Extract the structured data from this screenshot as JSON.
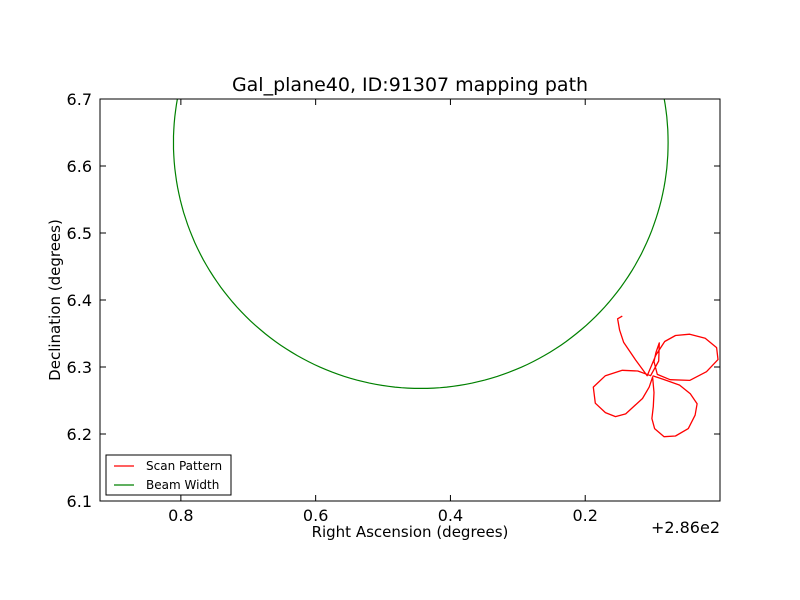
{
  "chart_data": {
    "type": "line",
    "title": "Gal_plane40, ID:91307 mapping path",
    "xlabel": "Right Ascension (degrees)",
    "ylabel": "Declination (degrees)",
    "x_offset_label": "+2.86e2",
    "x_offset_value": 286,
    "xlim": [
      286.92,
      286.0
    ],
    "ylim": [
      6.1,
      6.7
    ],
    "x_inverted": true,
    "xticks": [
      286.8,
      286.6,
      286.4,
      286.2
    ],
    "xtick_labels": [
      "0.8",
      "0.6",
      "0.4",
      "0.2"
    ],
    "yticks": [
      6.1,
      6.2,
      6.3,
      6.4,
      6.5,
      6.6,
      6.7
    ],
    "ytick_labels": [
      "6.1",
      "6.2",
      "6.3",
      "6.4",
      "6.5",
      "6.6",
      "6.7"
    ],
    "grid": false,
    "legend_position": "bottom-left",
    "series": [
      {
        "name": "Scan Pattern",
        "color": "#ff0000",
        "x": [
          286.145,
          286.152,
          286.149,
          286.143,
          286.125,
          286.108,
          286.095,
          286.082,
          286.066,
          286.045,
          286.022,
          286.005,
          286.003,
          286.02,
          286.045,
          286.074,
          286.093,
          286.098,
          286.095,
          286.09,
          286.091,
          286.103,
          286.122,
          286.145,
          286.17,
          286.188,
          286.185,
          286.17,
          286.155,
          286.14,
          286.127,
          286.115,
          286.105,
          286.1,
          286.098,
          286.099,
          286.101,
          286.097,
          286.083,
          286.066,
          286.047,
          286.037,
          286.034,
          286.044,
          286.06,
          286.085,
          286.1
        ],
        "y": [
          6.376,
          6.372,
          6.355,
          6.337,
          6.31,
          6.287,
          6.318,
          6.338,
          6.347,
          6.349,
          6.343,
          6.329,
          6.311,
          6.293,
          6.28,
          6.281,
          6.289,
          6.308,
          6.322,
          6.336,
          6.309,
          6.287,
          6.294,
          6.295,
          6.287,
          6.27,
          6.246,
          6.232,
          6.226,
          6.23,
          6.242,
          6.253,
          6.27,
          6.285,
          6.262,
          6.241,
          6.223,
          6.208,
          6.196,
          6.197,
          6.208,
          6.228,
          6.245,
          6.26,
          6.273,
          6.282,
          6.287
        ]
      },
      {
        "name": "Beam Width",
        "color": "#008000",
        "shape": "circle",
        "center": [
          286.444,
          6.635
        ],
        "radius_deg": 0.367
      }
    ]
  }
}
